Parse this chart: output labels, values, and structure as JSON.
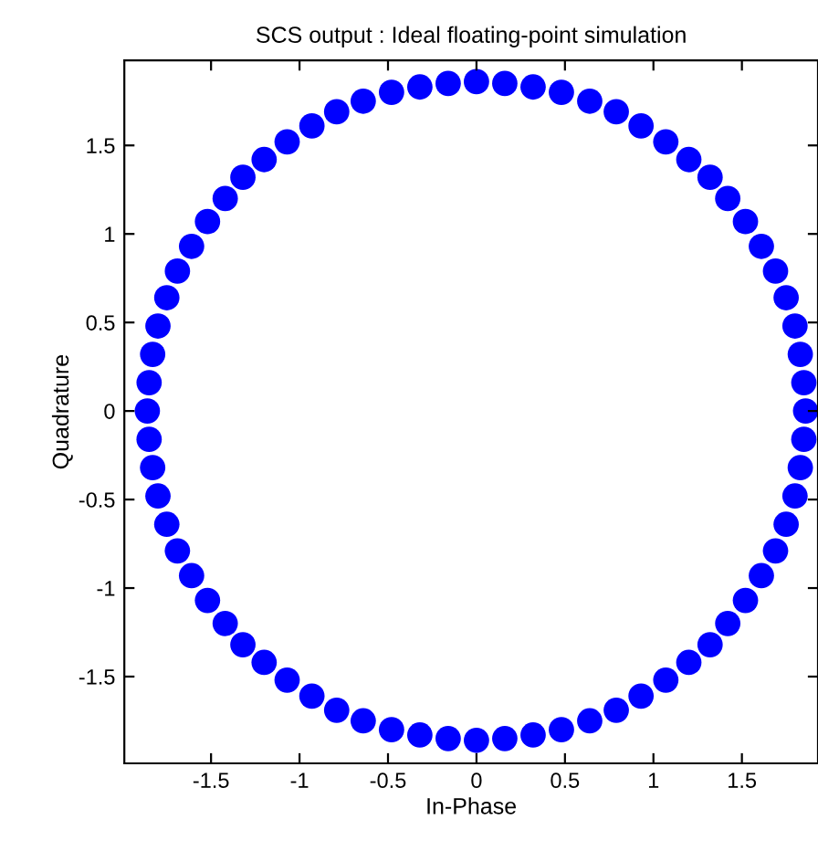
{
  "chart_data": {
    "type": "scatter",
    "title": "SCS output : Ideal floating-point simulation",
    "xlabel": "In-Phase",
    "ylabel": "Quadrature",
    "xlim": [
      -1.99,
      1.93
    ],
    "ylim": [
      -1.99,
      1.98
    ],
    "xticks": [
      -1.5,
      -1,
      -0.5,
      0,
      0.5,
      1,
      1.5
    ],
    "yticks": [
      -1.5,
      -1,
      -0.5,
      0,
      0.5,
      1,
      1.5
    ],
    "grid": false,
    "legend": false,
    "marker": "circle",
    "series": [
      {
        "color": "#0000ff",
        "x": [
          1.86,
          1.85,
          1.83,
          1.8,
          1.75,
          1.69,
          1.61,
          1.52,
          1.42,
          1.32,
          1.2,
          1.07,
          0.93,
          0.79,
          0.64,
          0.48,
          0.32,
          0.16,
          0,
          -0.16,
          -0.32,
          -0.48,
          -0.64,
          -0.79,
          -0.93,
          -1.07,
          -1.2,
          -1.32,
          -1.42,
          -1.52,
          -1.61,
          -1.69,
          -1.75,
          -1.8,
          -1.83,
          -1.85,
          -1.86,
          -1.85,
          -1.83,
          -1.8,
          -1.75,
          -1.69,
          -1.61,
          -1.52,
          -1.42,
          -1.32,
          -1.2,
          -1.07,
          -0.93,
          -0.79,
          -0.64,
          -0.48,
          -0.32,
          -0.16,
          0,
          0.16,
          0.32,
          0.48,
          0.64,
          0.79,
          0.93,
          1.07,
          1.2,
          1.32,
          1.42,
          1.52,
          1.61,
          1.69,
          1.75,
          1.8,
          1.83,
          1.85
        ],
        "values": [
          0,
          0.16,
          0.32,
          0.48,
          0.64,
          0.79,
          0.93,
          1.07,
          1.2,
          1.32,
          1.42,
          1.52,
          1.61,
          1.69,
          1.75,
          1.8,
          1.83,
          1.85,
          1.86,
          1.85,
          1.83,
          1.8,
          1.75,
          1.69,
          1.61,
          1.52,
          1.42,
          1.32,
          1.2,
          1.07,
          0.93,
          0.79,
          0.64,
          0.48,
          0.32,
          0.16,
          0,
          -0.16,
          -0.32,
          -0.48,
          -0.64,
          -0.79,
          -0.93,
          -1.07,
          -1.2,
          -1.32,
          -1.42,
          -1.52,
          -1.61,
          -1.69,
          -1.75,
          -1.8,
          -1.83,
          -1.85,
          -1.86,
          -1.85,
          -1.83,
          -1.8,
          -1.75,
          -1.69,
          -1.61,
          -1.52,
          -1.42,
          -1.32,
          -1.2,
          -1.07,
          -0.93,
          -0.79,
          -0.64,
          -0.48,
          -0.32,
          -0.16
        ]
      }
    ]
  }
}
